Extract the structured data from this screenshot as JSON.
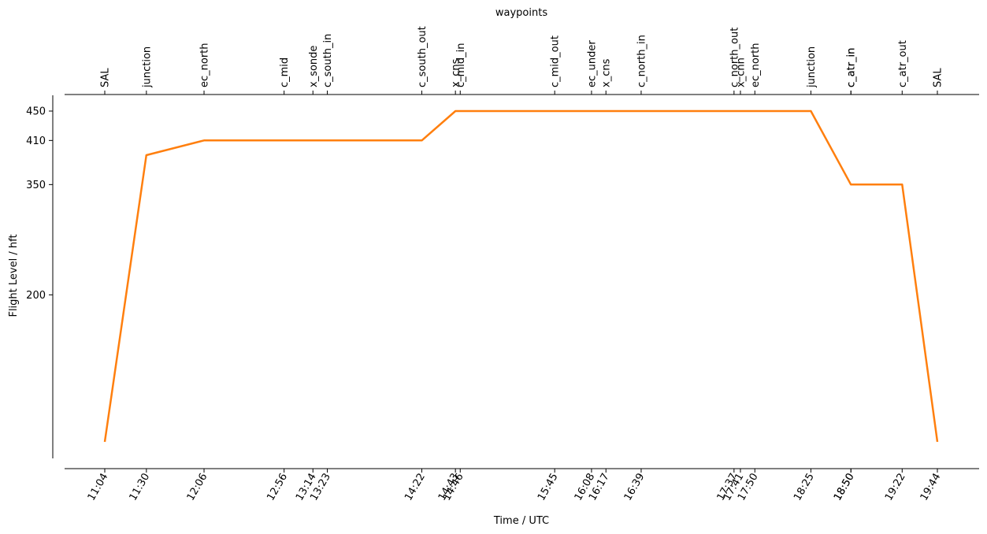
{
  "chart_data": {
    "type": "line",
    "top_axis_title": "waypoints",
    "xlabel": "Time / UTC",
    "ylabel": "Flight Level / hft",
    "y_ticks": [
      200,
      350,
      410,
      450
    ],
    "colors": {
      "series": "#ff7f0e",
      "axis": "#000000"
    },
    "grid": false,
    "waypoints": [
      {
        "name": "SAL",
        "time": "11:04"
      },
      {
        "name": "junction",
        "time": "11:30"
      },
      {
        "name": "ec_north",
        "time": "12:06"
      },
      {
        "name": "c_mid",
        "time": "12:56"
      },
      {
        "name": "x_sonde",
        "time": "13:14"
      },
      {
        "name": "c_south_in",
        "time": "13:23"
      },
      {
        "name": "c_south_out",
        "time": "14:22"
      },
      {
        "name": "x_cns",
        "time": "14:43"
      },
      {
        "name": "c_mid_in",
        "time": "14:46"
      },
      {
        "name": "c_mid_out",
        "time": "15:45"
      },
      {
        "name": "ec_under",
        "time": "16:08"
      },
      {
        "name": "x_cns",
        "time": "16:17"
      },
      {
        "name": "c_north_in",
        "time": "16:39"
      },
      {
        "name": "c_north_out",
        "time": "17:37"
      },
      {
        "name": "x_cnn",
        "time": "17:41"
      },
      {
        "name": "ec_north",
        "time": "17:50"
      },
      {
        "name": "junction",
        "time": "18:25"
      },
      {
        "name": "c_atr_in",
        "time": "18:50"
      },
      {
        "name": "c_atr_in",
        "time": "18:50"
      },
      {
        "name": "c_atr_out",
        "time": "19:22"
      },
      {
        "name": "SAL",
        "time": "19:44"
      }
    ],
    "series": [
      {
        "points": [
          {
            "x": "11:04",
            "y": 0
          },
          {
            "x": "11:30",
            "y": 390
          },
          {
            "x": "12:06",
            "y": 410
          },
          {
            "x": "14:22",
            "y": 410
          },
          {
            "x": "14:43",
            "y": 450
          },
          {
            "x": "18:25",
            "y": 450
          },
          {
            "x": "18:50",
            "y": 350
          },
          {
            "x": "19:22",
            "y": 350
          },
          {
            "x": "19:44",
            "y": 0
          }
        ]
      }
    ]
  }
}
